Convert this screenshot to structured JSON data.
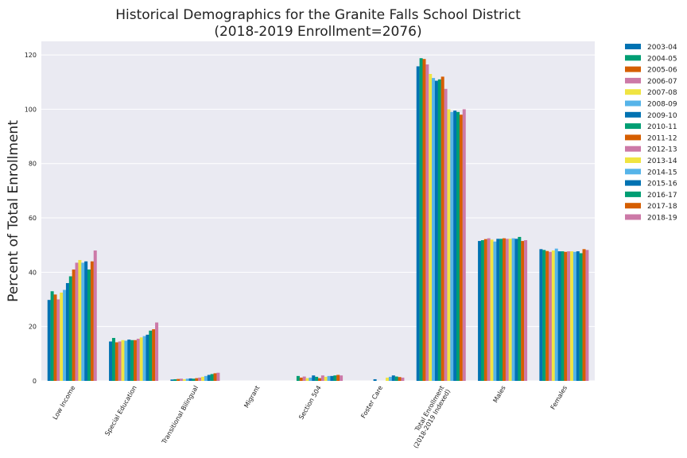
{
  "chart_data": {
    "type": "bar",
    "title": "Historical Demographics for the Granite Falls School District",
    "subtitle": "(2018-2019 Enrollment=2076)",
    "xlabel": "",
    "ylabel": "Percent of Total Enrollment",
    "ylim": [
      0,
      125
    ],
    "yticks": [
      0,
      20,
      40,
      60,
      80,
      100,
      120
    ],
    "grid": true,
    "legend_position": "outside-right",
    "categories": [
      "Low Income",
      "Special Education",
      "Transitional Bilingual",
      "Migrant",
      "Section 504",
      "Foster Care",
      "Total Enrollment\n(2018-2019 Indexed)",
      "Males",
      "Females"
    ],
    "series": [
      {
        "name": "2003-04",
        "color": "#0072b2",
        "values": [
          29.8,
          14.5,
          0.5,
          0,
          0,
          0,
          115.8,
          51.5,
          48.5
        ]
      },
      {
        "name": "2004-05",
        "color": "#009e73",
        "values": [
          33.0,
          15.8,
          0.6,
          0,
          1.8,
          0,
          118.8,
          51.8,
          48.2
        ]
      },
      {
        "name": "2005-06",
        "color": "#d55e00",
        "values": [
          31.8,
          14.2,
          0.7,
          0,
          1.2,
          0,
          118.5,
          52.2,
          47.8
        ]
      },
      {
        "name": "2006-07",
        "color": "#cc79a7",
        "values": [
          30.0,
          14.5,
          0.8,
          0,
          1.6,
          0,
          116.5,
          52.5,
          47.5
        ]
      },
      {
        "name": "2007-08",
        "color": "#f0e442",
        "values": [
          32.5,
          15.0,
          0.6,
          0,
          1.0,
          0,
          113.0,
          52.0,
          48.0
        ]
      },
      {
        "name": "2008-09",
        "color": "#56b4e9",
        "values": [
          33.5,
          14.8,
          0.8,
          0,
          1.2,
          0,
          111.5,
          51.3,
          48.7
        ]
      },
      {
        "name": "2009-10",
        "color": "#0072b2",
        "values": [
          36.0,
          15.2,
          0.9,
          0,
          2.0,
          0.6,
          110.5,
          52.3,
          47.7
        ]
      },
      {
        "name": "2010-11",
        "color": "#009e73",
        "values": [
          38.5,
          15.0,
          0.8,
          0,
          1.5,
          0,
          111.0,
          52.3,
          47.7
        ]
      },
      {
        "name": "2011-12",
        "color": "#d55e00",
        "values": [
          41.0,
          15.0,
          1.0,
          0,
          1.0,
          0,
          112.0,
          52.5,
          47.5
        ]
      },
      {
        "name": "2012-13",
        "color": "#cc79a7",
        "values": [
          43.5,
          15.5,
          1.2,
          0,
          2.0,
          0,
          107.5,
          52.3,
          47.7
        ]
      },
      {
        "name": "2013-14",
        "color": "#f0e442",
        "values": [
          44.5,
          16.0,
          1.5,
          0,
          1.5,
          1.2,
          100.0,
          52.3,
          47.7
        ]
      },
      {
        "name": "2014-15",
        "color": "#56b4e9",
        "values": [
          43.5,
          16.5,
          1.8,
          0,
          1.8,
          1.5,
          99.0,
          52.5,
          47.5
        ]
      },
      {
        "name": "2015-16",
        "color": "#0072b2",
        "values": [
          44.0,
          17.0,
          2.2,
          0,
          1.8,
          2.0,
          99.5,
          52.3,
          47.7
        ]
      },
      {
        "name": "2016-17",
        "color": "#009e73",
        "values": [
          41.0,
          18.5,
          2.5,
          0,
          2.0,
          1.6,
          99.0,
          53.0,
          47.0
        ]
      },
      {
        "name": "2017-18",
        "color": "#d55e00",
        "values": [
          44.0,
          19.0,
          2.8,
          0,
          2.2,
          1.4,
          98.0,
          51.5,
          48.5
        ]
      },
      {
        "name": "2018-19",
        "color": "#cc79a7",
        "values": [
          48.0,
          21.5,
          3.0,
          0,
          2.0,
          1.2,
          100.0,
          51.8,
          48.2
        ]
      }
    ]
  }
}
